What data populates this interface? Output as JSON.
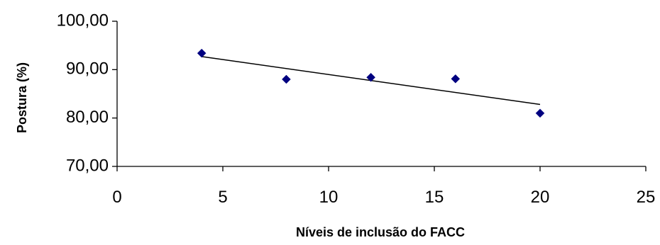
{
  "chart_data": {
    "type": "scatter",
    "title": "",
    "xlabel": "Níveis de inclusão do FACC",
    "ylabel": "Postura (%)",
    "xlim": [
      0,
      25
    ],
    "ylim": [
      70,
      100
    ],
    "x_ticks": [
      0,
      5,
      10,
      15,
      20,
      25
    ],
    "x_tick_labels": [
      "0",
      "5",
      "10",
      "15",
      "20",
      "25"
    ],
    "y_ticks": [
      70,
      80,
      90,
      100
    ],
    "y_tick_labels": [
      "70,00",
      "80,00",
      "90,00",
      "100,00"
    ],
    "grid": false,
    "legend": "none",
    "series": [
      {
        "marker": "diamond",
        "color": "#000080",
        "points": [
          {
            "x": 4,
            "y": 93.4
          },
          {
            "x": 8,
            "y": 88.0
          },
          {
            "x": 12,
            "y": 88.4
          },
          {
            "x": 16,
            "y": 88.1
          },
          {
            "x": 20,
            "y": 81.0
          }
        ]
      }
    ],
    "trendline": {
      "type": "linear",
      "color": "#000000",
      "x_range": [
        4,
        20
      ],
      "y_values": [
        92.7,
        82.8
      ]
    }
  }
}
